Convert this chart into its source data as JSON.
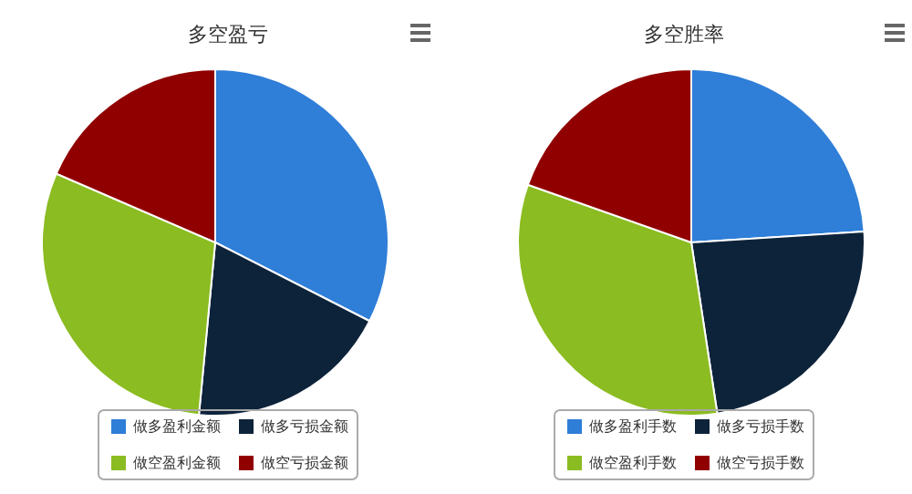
{
  "chart_data": [
    {
      "type": "pie",
      "title": "多空盈亏",
      "categories": [
        "做多盈利金额",
        "做多亏损金额",
        "做空盈利金额",
        "做空亏损金额"
      ],
      "values": [
        32.5,
        19,
        30,
        18.5
      ],
      "colors": [
        "#2f7ed8",
        "#0d233a",
        "#8bbc21",
        "#910000"
      ],
      "legend": "bottom"
    },
    {
      "type": "pie",
      "title": "多空胜率",
      "categories": [
        "做多盈利手数",
        "做多亏损手数",
        "做空盈利手数",
        "做空亏损手数"
      ],
      "values": [
        24,
        23.6,
        32.8,
        19.6
      ],
      "colors": [
        "#2f7ed8",
        "#0d233a",
        "#8bbc21",
        "#910000"
      ],
      "legend": "bottom"
    }
  ]
}
